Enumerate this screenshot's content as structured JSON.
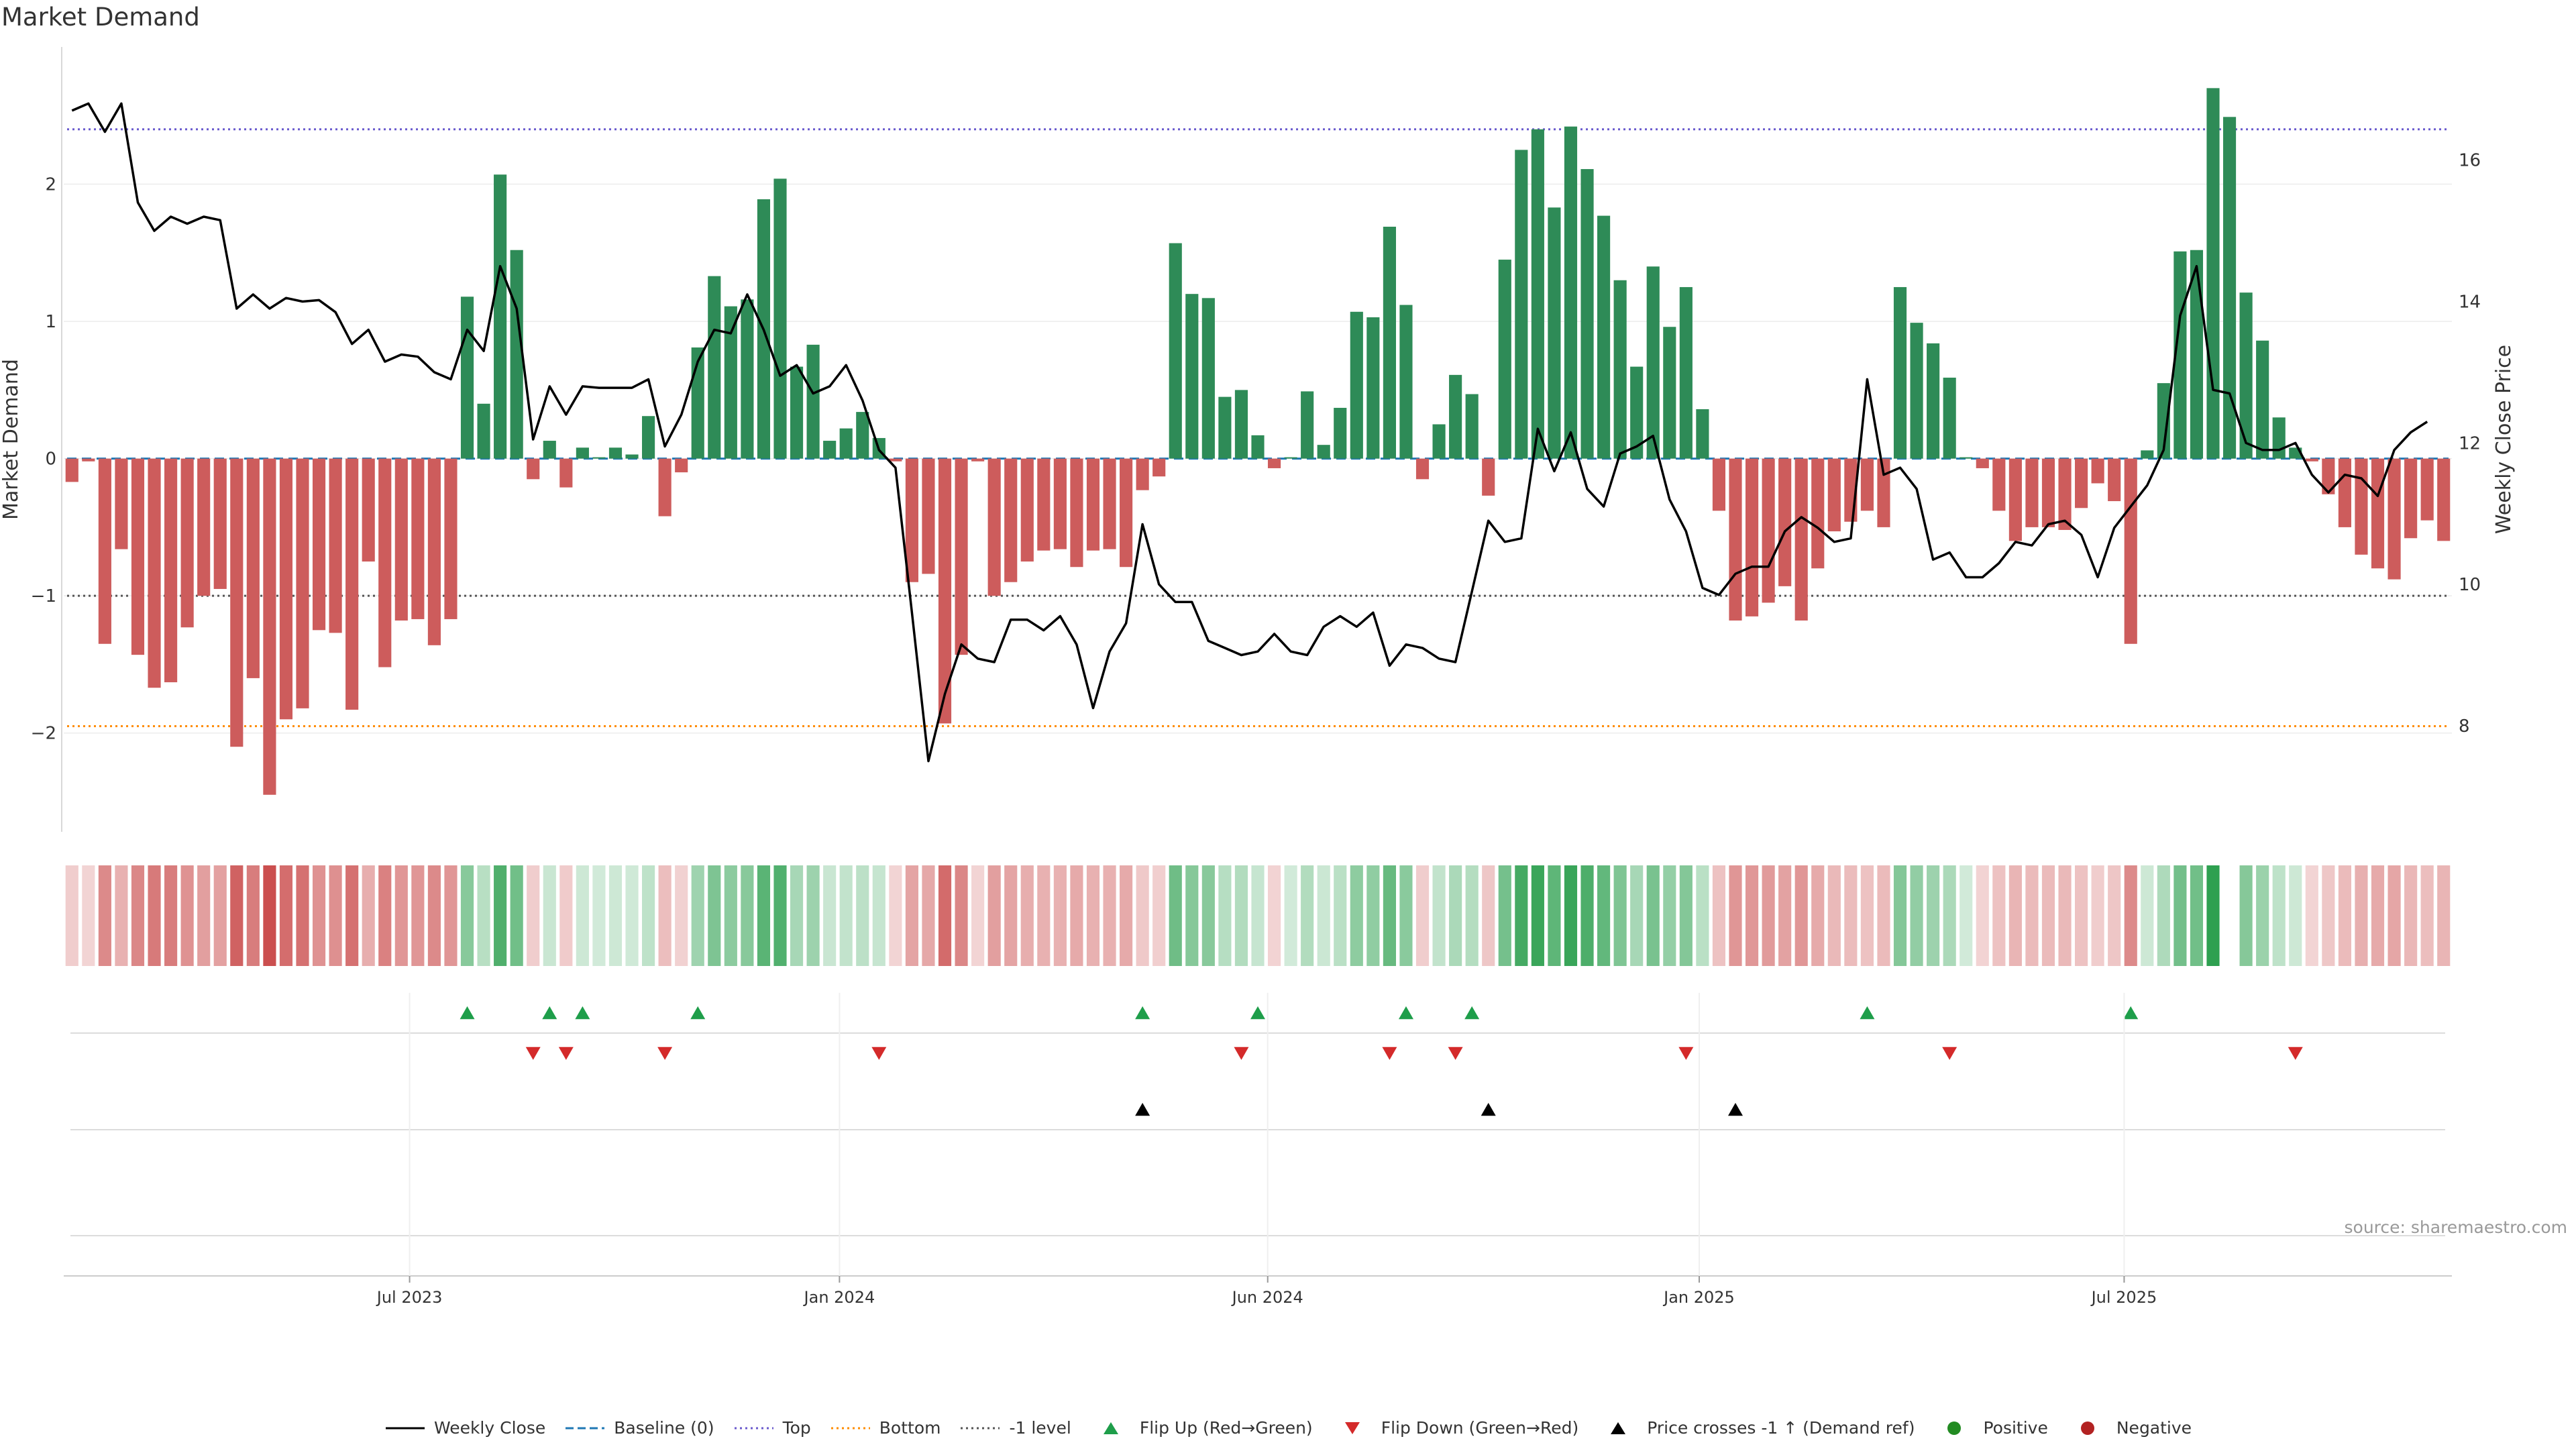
{
  "title": "Market Demand",
  "source": "source: sharemaestro.com",
  "colors": {
    "pos": "#2e8b57",
    "neg": "#cd5c5c",
    "price": "#000000",
    "top": "#6a5acd",
    "bottom": "#ff8c00",
    "minus1": "#555555",
    "baseline": "#1f77b4",
    "flip_up": "#1e9e4a",
    "flip_down": "#d42a2a"
  },
  "legend": [
    {
      "label": "Weekly Close",
      "kind": "line"
    },
    {
      "label": "Baseline (0)",
      "kind": "dash"
    },
    {
      "label": "Top",
      "kind": "dot"
    },
    {
      "label": "Bottom",
      "kind": "dot-orange"
    },
    {
      "label": "-1 level",
      "kind": "dot-grey"
    },
    {
      "label": "Flip Up (Red→Green)",
      "kind": "tri-up"
    },
    {
      "label": "Flip Down (Green→Red)",
      "kind": "tri-down"
    },
    {
      "label": "Price crosses -1 ↑ (Demand ref)",
      "kind": "tri-black"
    },
    {
      "label": "Positive",
      "kind": "dot-green"
    },
    {
      "label": "Negative",
      "kind": "dot-red"
    }
  ],
  "chart_data": {
    "type": "bar",
    "title": "Market Demand",
    "ylabel": "Market Demand",
    "y2label": "Weekly Close Price",
    "ylim": [
      -2.72,
      3.0
    ],
    "y2lim": [
      6.5,
      17.6
    ],
    "yticks": [
      -2,
      -1,
      0,
      1,
      2
    ],
    "y2ticks": [
      8,
      10,
      12,
      14,
      16
    ],
    "ref_lines": {
      "top": 2.4,
      "bottom": -1.95,
      "minus1": -1.0,
      "baseline": 0
    },
    "start": "2023-01-02",
    "x_ticks": [
      {
        "label": "Jul 2023",
        "week": 21
      },
      {
        "label": "Jan 2024",
        "week": 47.1
      },
      {
        "label": "Jun 2024",
        "week": 73.1
      },
      {
        "label": "Jan 2025",
        "week": 99.3
      },
      {
        "label": "Jul 2025",
        "week": 125.1
      }
    ],
    "demand": [
      -0.17,
      -0.02,
      -1.35,
      -0.66,
      -1.43,
      -1.67,
      -1.63,
      -1.23,
      -1.0,
      -0.95,
      -2.1,
      -1.6,
      -2.45,
      -1.9,
      -1.82,
      -1.25,
      -1.27,
      -1.83,
      -0.75,
      -1.52,
      -1.18,
      -1.17,
      -1.36,
      -1.17,
      1.18,
      0.4,
      2.07,
      1.52,
      -0.15,
      0.13,
      -0.21,
      0.08,
      0.01,
      0.08,
      0.03,
      0.31,
      -0.42,
      -0.1,
      0.81,
      1.33,
      1.11,
      1.16,
      1.89,
      2.04,
      0.67,
      0.83,
      0.13,
      0.22,
      0.34,
      0.15,
      -0.02,
      -0.9,
      -0.84,
      -1.93,
      -1.43,
      -0.02,
      -1.0,
      -0.9,
      -0.75,
      -0.67,
      -0.66,
      -0.79,
      -0.67,
      -0.66,
      -0.79,
      -0.23,
      -0.13,
      1.57,
      1.2,
      1.17,
      0.45,
      0.5,
      0.17,
      -0.07,
      0.01,
      0.49,
      0.1,
      0.37,
      1.07,
      1.03,
      1.69,
      1.12,
      -0.15,
      0.25,
      0.61,
      0.47,
      -0.27,
      1.45,
      2.25,
      2.4,
      1.83,
      2.42,
      2.11,
      1.77,
      1.3,
      0.67,
      1.4,
      0.96,
      1.25,
      0.36,
      -0.38,
      -1.18,
      -1.15,
      -1.05,
      -0.93,
      -1.18,
      -0.8,
      -0.53,
      -0.46,
      -0.38,
      -0.5,
      1.25,
      0.99,
      0.84,
      0.59,
      0.01,
      -0.07,
      -0.38,
      -0.6,
      -0.5,
      -0.5,
      -0.52,
      -0.36,
      -0.18,
      -0.31,
      -1.35,
      0.06,
      0.55,
      1.51,
      1.52,
      2.7,
      2.49,
      1.21,
      0.86,
      0.3,
      0.08,
      -0.02,
      -0.26,
      -0.5,
      -0.7,
      -0.8,
      -0.88,
      -0.58,
      -0.45,
      -0.6
    ],
    "price": [
      16.7,
      16.8,
      16.4,
      16.8,
      15.4,
      15.0,
      15.2,
      15.1,
      15.2,
      15.15,
      13.9,
      14.1,
      13.9,
      14.05,
      14.0,
      14.02,
      13.85,
      13.4,
      13.6,
      13.15,
      13.25,
      13.22,
      13.0,
      12.9,
      13.6,
      13.3,
      14.5,
      13.9,
      12.05,
      12.8,
      12.4,
      12.8,
      12.78,
      12.78,
      12.78,
      12.9,
      11.95,
      12.4,
      13.15,
      13.6,
      13.55,
      14.1,
      13.6,
      12.95,
      13.1,
      12.7,
      12.8,
      13.1,
      12.6,
      11.9,
      11.65,
      9.6,
      7.5,
      8.45,
      9.15,
      8.95,
      8.9,
      9.5,
      9.5,
      9.35,
      9.55,
      9.15,
      8.25,
      9.05,
      9.45,
      10.85,
      10.0,
      9.75,
      9.75,
      9.2,
      9.1,
      9.0,
      9.05,
      9.3,
      9.05,
      9.0,
      9.4,
      9.55,
      9.4,
      9.6,
      8.85,
      9.15,
      9.1,
      8.95,
      8.9,
      9.9,
      10.9,
      10.6,
      10.65,
      12.2,
      11.6,
      12.15,
      11.35,
      11.1,
      11.85,
      11.95,
      12.1,
      11.2,
      10.75,
      9.95,
      9.85,
      10.15,
      10.25,
      10.25,
      10.75,
      10.95,
      10.8,
      10.6,
      10.65,
      12.9,
      11.55,
      11.65,
      11.35,
      10.35,
      10.45,
      10.1,
      10.1,
      10.3,
      10.6,
      10.55,
      10.85,
      10.9,
      10.7,
      10.1,
      10.8,
      11.1,
      11.4,
      11.9,
      13.8,
      14.5,
      12.75,
      12.7,
      12.0,
      11.9,
      11.9,
      12.0,
      11.55,
      11.3,
      11.55,
      11.5,
      11.25,
      11.9,
      12.15,
      12.3
    ],
    "flip_up_weeks": [
      24,
      29,
      31,
      38,
      65,
      72,
      81,
      85,
      109,
      125
    ],
    "flip_down_weeks": [
      28,
      30,
      36,
      49,
      71,
      80,
      84,
      98,
      114,
      135
    ],
    "price_cross_weeks": [
      65,
      86,
      101
    ]
  }
}
